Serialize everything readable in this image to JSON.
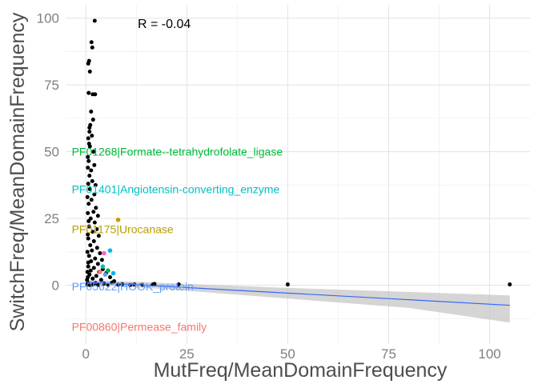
{
  "chart_data": {
    "type": "scatter",
    "xlabel": "MutFreq/MeanDomainFrequency",
    "ylabel": "SwitchFreq/MeanDomainFrequency",
    "xlim": [
      -5,
      110
    ],
    "ylim": [
      -22,
      105
    ],
    "x_ticks": [
      0,
      25,
      50,
      75,
      100
    ],
    "y_ticks": [
      0,
      25,
      50,
      75,
      100
    ],
    "grid": true,
    "correlation_label": "R = -0.04",
    "regression": {
      "color": "#3366ff",
      "band_color": "#bfbfbf",
      "line": [
        [
          0,
          1.2
        ],
        [
          105,
          -7.5
        ]
      ],
      "band_upper": [
        [
          0,
          2.0
        ],
        [
          20,
          0.8
        ],
        [
          50,
          -1.0
        ],
        [
          80,
          -2.5
        ],
        [
          105,
          -3.8
        ]
      ],
      "band_lower": [
        [
          0,
          0.3
        ],
        [
          20,
          -1.5
        ],
        [
          50,
          -5.0
        ],
        [
          80,
          -8.5
        ],
        [
          105,
          -14.0
        ]
      ]
    },
    "black_points": [
      [
        2.2,
        99
      ],
      [
        1.4,
        91
      ],
      [
        1.6,
        89
      ],
      [
        0.8,
        84
      ],
      [
        0.6,
        83
      ],
      [
        1.0,
        80
      ],
      [
        0.7,
        72
      ],
      [
        1.7,
        71.5
      ],
      [
        2.3,
        71.5
      ],
      [
        1.1,
        60
      ],
      [
        0.9,
        59
      ],
      [
        1.5,
        56
      ],
      [
        0.8,
        53
      ],
      [
        1.9,
        50
      ],
      [
        0.5,
        48
      ],
      [
        2.1,
        45
      ],
      [
        1.3,
        43
      ],
      [
        0.9,
        41
      ],
      [
        1.6,
        39
      ],
      [
        2.4,
        37.5
      ],
      [
        1.0,
        36
      ],
      [
        2.1,
        34
      ],
      [
        1.4,
        32
      ],
      [
        0.7,
        30.5
      ],
      [
        2.5,
        29
      ],
      [
        1.9,
        27.5
      ],
      [
        3.0,
        26
      ],
      [
        1.2,
        25
      ],
      [
        2.2,
        23.5
      ],
      [
        0.8,
        22
      ],
      [
        2.7,
        21
      ],
      [
        1.7,
        20
      ],
      [
        3.2,
        18.5
      ],
      [
        0.6,
        17.5
      ],
      [
        2.0,
        16.5
      ],
      [
        1.1,
        15
      ],
      [
        2.8,
        14
      ],
      [
        1.5,
        13
      ],
      [
        3.5,
        12
      ],
      [
        0.8,
        11
      ],
      [
        2.3,
        10
      ],
      [
        4.0,
        9.5
      ],
      [
        1.3,
        9
      ],
      [
        3.0,
        8
      ],
      [
        0.6,
        7
      ],
      [
        2.0,
        6.5
      ],
      [
        4.2,
        6
      ],
      [
        1.2,
        5.5
      ],
      [
        3.3,
        5
      ],
      [
        5.0,
        4.5
      ],
      [
        0.9,
        4
      ],
      [
        2.6,
        3.5
      ],
      [
        6.0,
        3
      ],
      [
        1.7,
        2.5
      ],
      [
        3.8,
        2
      ],
      [
        7.0,
        1.5
      ],
      [
        0.5,
        1
      ],
      [
        2.4,
        0.8
      ],
      [
        4.5,
        0.6
      ],
      [
        9.0,
        0.4
      ],
      [
        12.0,
        0.3
      ],
      [
        16.5,
        0.3
      ],
      [
        17.0,
        0.5
      ],
      [
        23.0,
        0.3
      ],
      [
        50.0,
        0.3
      ],
      [
        105.0,
        0.3
      ],
      [
        0.4,
        0.2
      ],
      [
        1.0,
        0.1
      ],
      [
        1.8,
        0.2
      ],
      [
        3.0,
        0.1
      ],
      [
        5.5,
        0.2
      ],
      [
        8.0,
        0.2
      ],
      [
        11.0,
        0.1
      ],
      [
        14.0,
        0.2
      ],
      [
        6.5,
        1.0
      ],
      [
        0.3,
        2.0
      ],
      [
        0.5,
        3.0
      ],
      [
        0.4,
        5.0
      ],
      [
        0.6,
        8.5
      ],
      [
        0.4,
        12.5
      ],
      [
        0.5,
        19.0
      ],
      [
        0.7,
        24.0
      ],
      [
        0.5,
        27.0
      ],
      [
        0.4,
        33.0
      ],
      [
        0.6,
        38.0
      ],
      [
        0.5,
        44.0
      ],
      [
        0.7,
        46.5
      ],
      [
        1.0,
        52.0
      ],
      [
        0.6,
        55.0
      ],
      [
        0.9,
        57.5
      ],
      [
        1.8,
        62.0
      ],
      [
        1.3,
        65.0
      ]
    ],
    "colored_points": [
      {
        "x": 8.0,
        "y": 24.5,
        "color": "#c49a00"
      },
      {
        "x": 6.0,
        "y": 13.0,
        "color": "#00b8e7"
      },
      {
        "x": 4.5,
        "y": 12.0,
        "color": "#ff61c3"
      },
      {
        "x": 4.2,
        "y": 7.0,
        "color": "#00c0b8"
      },
      {
        "x": 5.5,
        "y": 5.5,
        "color": "#00ba38"
      },
      {
        "x": 6.8,
        "y": 4.5,
        "color": "#00b4ef"
      },
      {
        "x": 3.5,
        "y": 5.0,
        "color": "#f8766d"
      },
      {
        "x": 4.8,
        "y": 4.0,
        "color": "#619cff"
      }
    ],
    "annotations": [
      {
        "text": "PF01268|Formate--tetrahydrofolate_ligase",
        "x": -3.5,
        "y": 48.5,
        "color": "#00ba38"
      },
      {
        "text": "PF01401|Angiotensin-converting_enzyme",
        "x": -3.5,
        "y": 34.5,
        "color": "#00bfc4"
      },
      {
        "text": "PF01175|Urocanase",
        "x": -3.5,
        "y": 19.5,
        "color": "#b79f00"
      },
      {
        "text": "PF05622|HOOK_protein",
        "x": -3.5,
        "y": -2.0,
        "color": "#619cff"
      },
      {
        "text": "PF00860|Permease_family",
        "x": -3.5,
        "y": -17.0,
        "color": "#f8766d"
      }
    ]
  }
}
